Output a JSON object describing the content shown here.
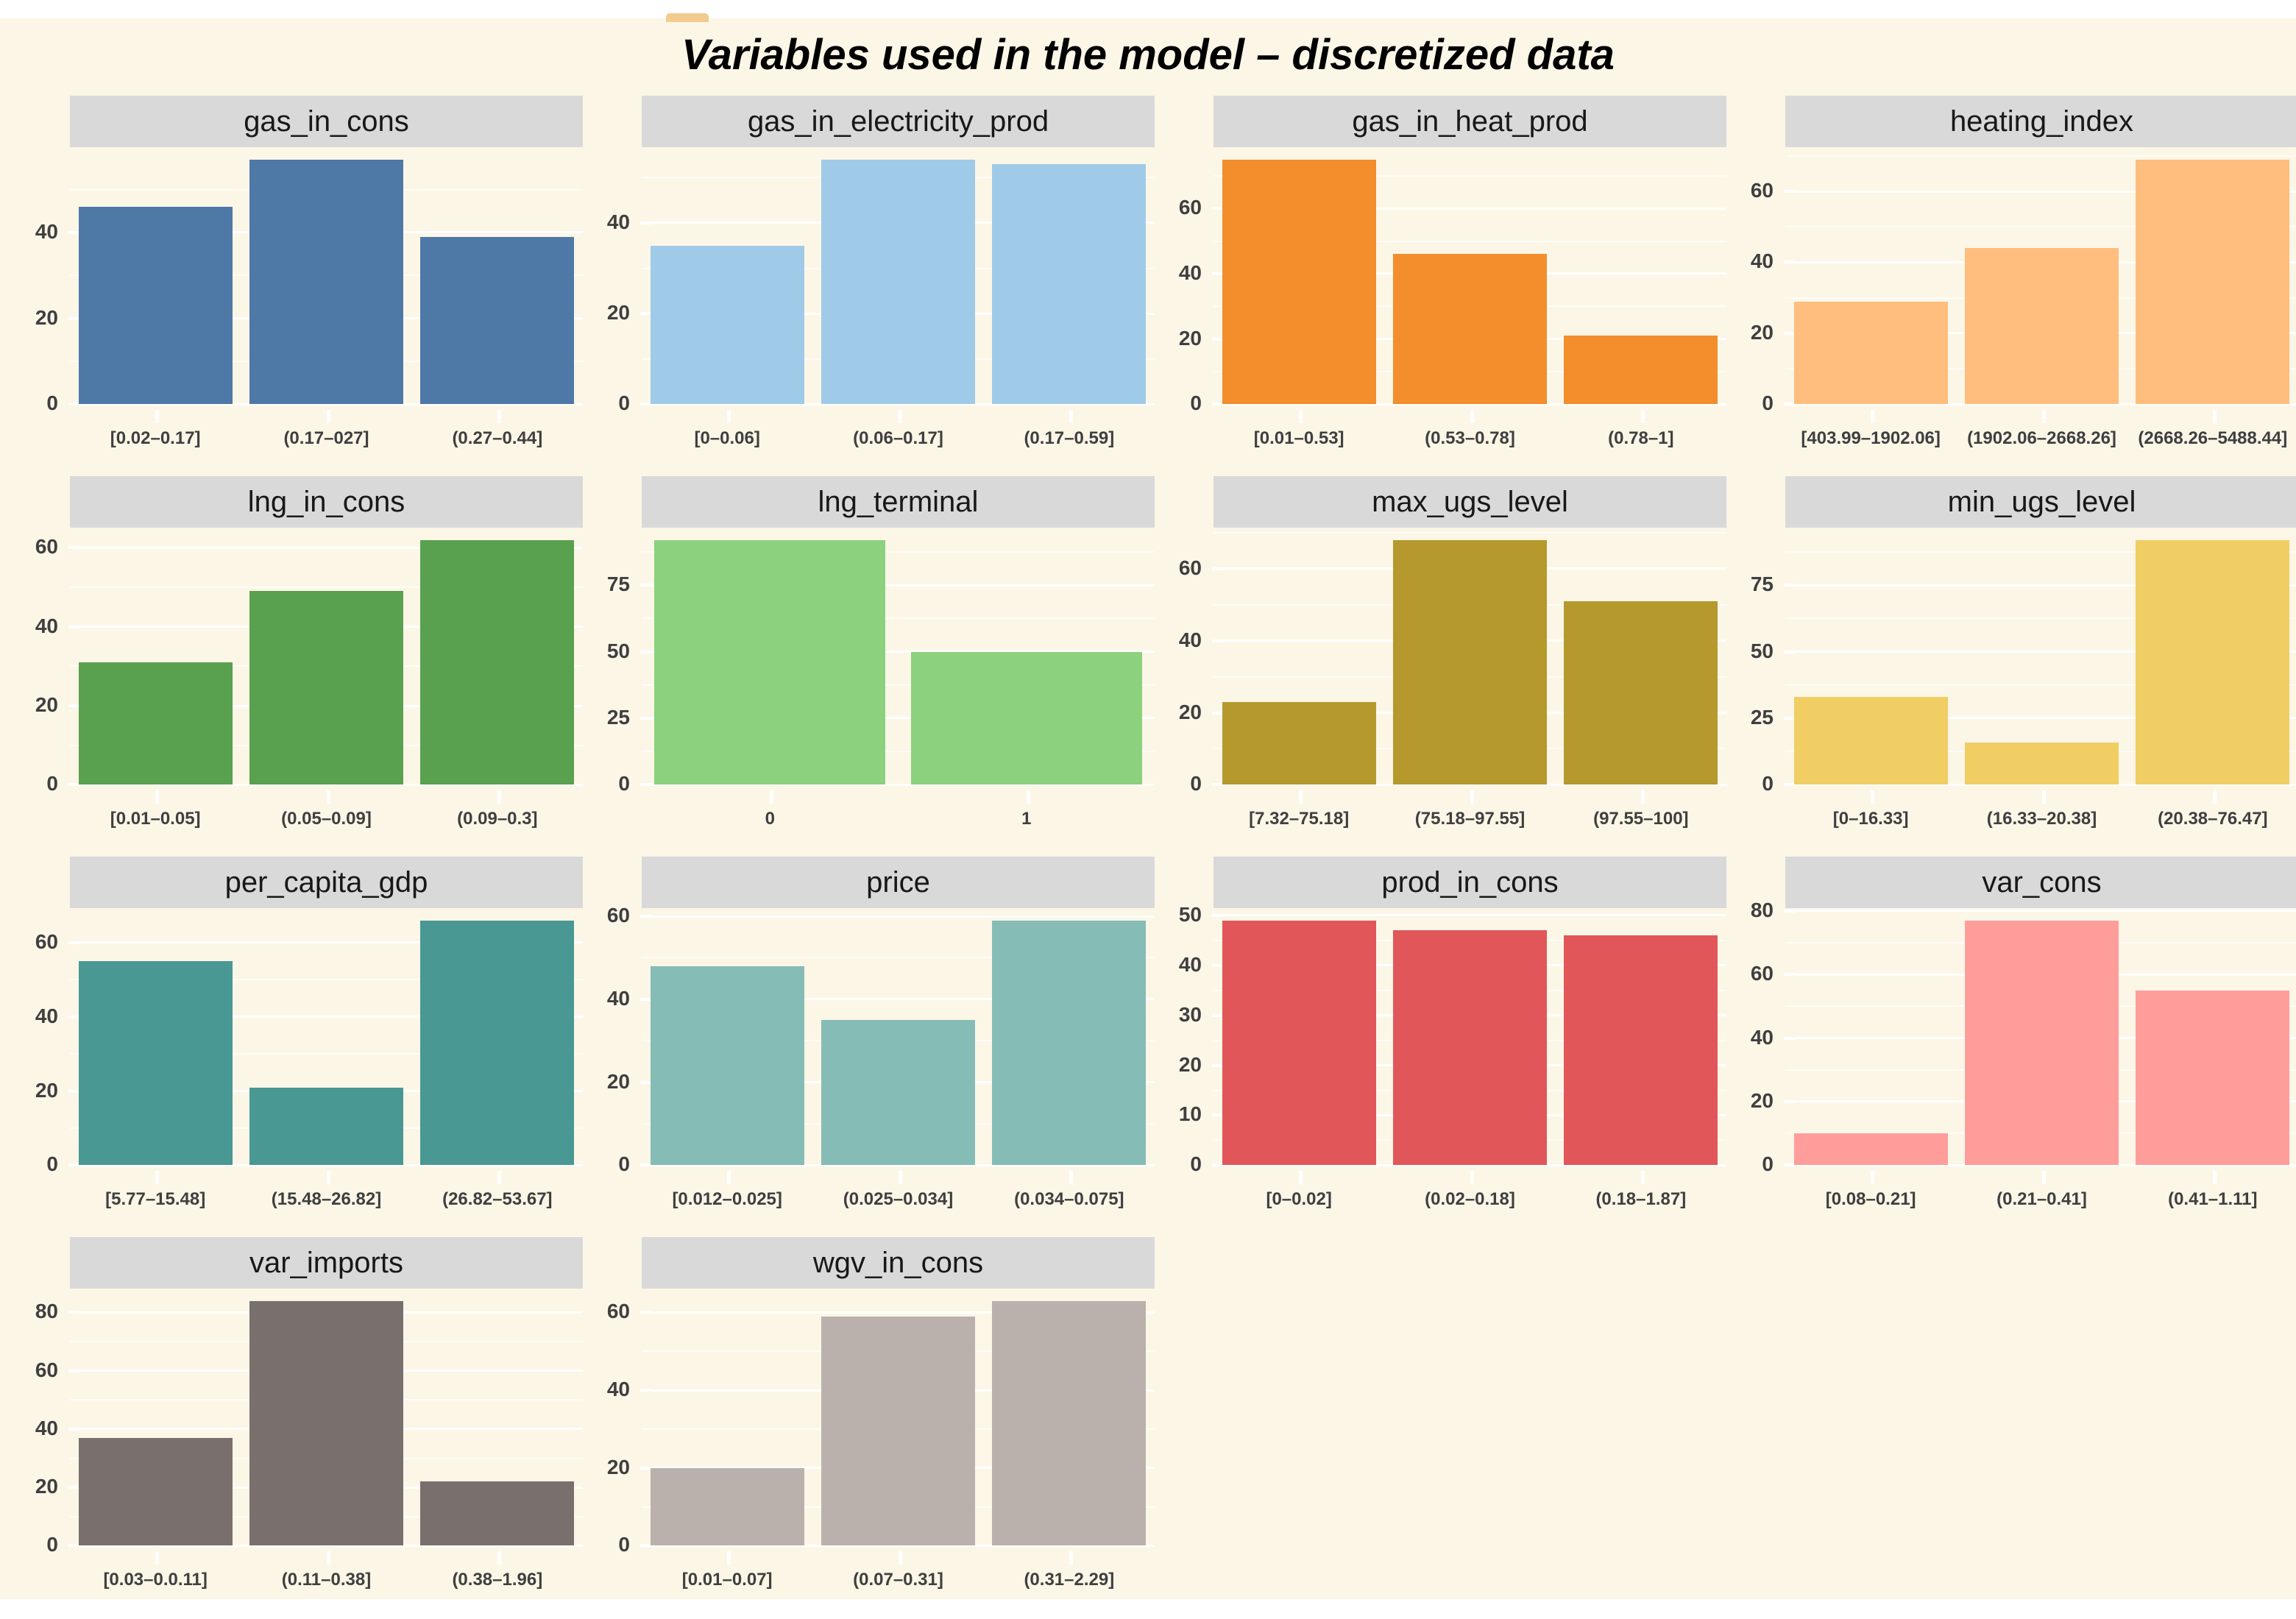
{
  "title": "Variables used in the model – discretized data",
  "colors": {
    "page_bg": "#FFFFFF",
    "canvas_bg": "#FCF6E7",
    "strip_bg": "#D9D9D9",
    "grid_line": "#FFFFFF",
    "axis_text": "#3F3F3F",
    "title_text": "#000000"
  },
  "chart_data": [
    {
      "type": "bar",
      "name": "gas_in_cons",
      "title": "gas_in_cons",
      "bar_color": "#4E79A7",
      "categories": [
        "[0.02–0.17]",
        "(0.17–027]",
        "(0.27–0.44]"
      ],
      "values": [
        46,
        57,
        39
      ],
      "yticks": [
        0,
        20,
        40
      ],
      "ylim": [
        0,
        60
      ],
      "grid": true,
      "legend": false
    },
    {
      "type": "bar",
      "name": "gas_in_electricity_prod",
      "title": "gas_in_electricity_prod",
      "bar_color": "#A0CBE8",
      "categories": [
        "[0–0.06]",
        "(0.06–0.17]",
        "(0.17–0.59]"
      ],
      "values": [
        35,
        54,
        53
      ],
      "yticks": [
        0,
        20,
        40
      ],
      "ylim": [
        0,
        57
      ],
      "grid": true,
      "legend": false
    },
    {
      "type": "bar",
      "name": "gas_in_heat_prod",
      "title": "gas_in_heat_prod",
      "bar_color": "#F28E2B",
      "categories": [
        "[0.01–0.53]",
        "(0.53–0.78]",
        "(0.78–1]"
      ],
      "values": [
        75,
        46,
        21
      ],
      "yticks": [
        0,
        20,
        40,
        60
      ],
      "ylim": [
        0,
        79
      ],
      "grid": true,
      "legend": false
    },
    {
      "type": "bar",
      "name": "heating_index",
      "title": "heating_index",
      "bar_color": "#FFBE7D",
      "categories": [
        "[403.99–1902.06]",
        "(1902.06–2668.26]",
        "(2668.26–5488.44]"
      ],
      "values": [
        29,
        44,
        69
      ],
      "yticks": [
        0,
        20,
        40,
        60
      ],
      "ylim": [
        0,
        73
      ],
      "grid": true,
      "legend": false
    },
    {
      "type": "bar",
      "name": "lng_in_cons",
      "title": "lng_in_cons",
      "bar_color": "#59A14F",
      "categories": [
        "[0.01–0.05]",
        "(0.05–0.09]",
        "(0.09–0.3]"
      ],
      "values": [
        31,
        49,
        62
      ],
      "yticks": [
        0,
        20,
        40,
        60
      ],
      "ylim": [
        0,
        65
      ],
      "grid": true,
      "legend": false
    },
    {
      "type": "bar",
      "name": "lng_terminal",
      "title": "lng_terminal",
      "bar_color": "#8CD17D",
      "categories": [
        "0",
        "1"
      ],
      "values": [
        92,
        50
      ],
      "yticks": [
        0,
        25,
        50,
        75
      ],
      "ylim": [
        0,
        97
      ],
      "grid": true,
      "legend": false
    },
    {
      "type": "bar",
      "name": "max_ugs_level",
      "title": "max_ugs_level",
      "bar_color": "#B6992D",
      "categories": [
        "[7.32–75.18]",
        "(75.18–97.55]",
        "(97.55–100]"
      ],
      "values": [
        23,
        68,
        51
      ],
      "yticks": [
        0,
        20,
        40,
        60
      ],
      "ylim": [
        0,
        71
      ],
      "grid": true,
      "legend": false
    },
    {
      "type": "bar",
      "name": "min_ugs_level",
      "title": "min_ugs_level",
      "bar_color": "#F1CE63",
      "categories": [
        "[0–16.33]",
        "(16.33–20.38]",
        "(20.38–76.47]"
      ],
      "values": [
        33,
        16,
        92
      ],
      "yticks": [
        0,
        25,
        50,
        75
      ],
      "ylim": [
        0,
        97
      ],
      "grid": true,
      "legend": false
    },
    {
      "type": "bar",
      "name": "per_capita_gdp",
      "title": "per_capita_gdp",
      "bar_color": "#499894",
      "categories": [
        "[5.77–15.48]",
        "(15.48–26.82]",
        "(26.82–53.67]"
      ],
      "values": [
        55,
        21,
        66
      ],
      "yticks": [
        0,
        20,
        40,
        60
      ],
      "ylim": [
        0,
        69
      ],
      "grid": true,
      "legend": false
    },
    {
      "type": "bar",
      "name": "price",
      "title": "price",
      "bar_color": "#86BCB6",
      "categories": [
        "[0.012–0.025]",
        "(0.025–0.034]",
        "(0.034–0.075]"
      ],
      "values": [
        48,
        35,
        59
      ],
      "yticks": [
        0,
        20,
        40,
        60
      ],
      "ylim": [
        0,
        62
      ],
      "grid": true,
      "legend": false
    },
    {
      "type": "bar",
      "name": "prod_in_cons",
      "title": "prod_in_cons",
      "bar_color": "#E15759",
      "categories": [
        "[0–0.02]",
        "(0.02–0.18]",
        "(0.18–1.87]"
      ],
      "values": [
        49,
        47,
        46
      ],
      "yticks": [
        0,
        10,
        20,
        30,
        40,
        50
      ],
      "ylim": [
        0,
        51
      ],
      "grid": true,
      "legend": false
    },
    {
      "type": "bar",
      "name": "var_cons",
      "title": "var_cons",
      "bar_color": "#FF9D9A",
      "categories": [
        "[0.08–0.21]",
        "(0.21–0.41]",
        "(0.41–1.11]"
      ],
      "values": [
        10,
        77,
        55
      ],
      "yticks": [
        0,
        20,
        40,
        60,
        80
      ],
      "ylim": [
        0,
        81
      ],
      "grid": true,
      "legend": false
    },
    {
      "type": "bar",
      "name": "var_imports",
      "title": "var_imports",
      "bar_color": "#79706E",
      "categories": [
        "[0.03–0.0.11]",
        "(0.11–0.38]",
        "(0.38–1.96]"
      ],
      "values": [
        37,
        84,
        22
      ],
      "yticks": [
        0,
        20,
        40,
        60,
        80
      ],
      "ylim": [
        0,
        88
      ],
      "grid": true,
      "legend": false
    },
    {
      "type": "bar",
      "name": "wgv_in_cons",
      "title": "wgv_in_cons",
      "bar_color": "#BAB0AC",
      "categories": [
        "[0.01–0.07]",
        "(0.07–0.31]",
        "(0.31–2.29]"
      ],
      "values": [
        20,
        59,
        63
      ],
      "yticks": [
        0,
        20,
        40,
        60
      ],
      "ylim": [
        0,
        66
      ],
      "grid": true,
      "legend": false
    }
  ]
}
